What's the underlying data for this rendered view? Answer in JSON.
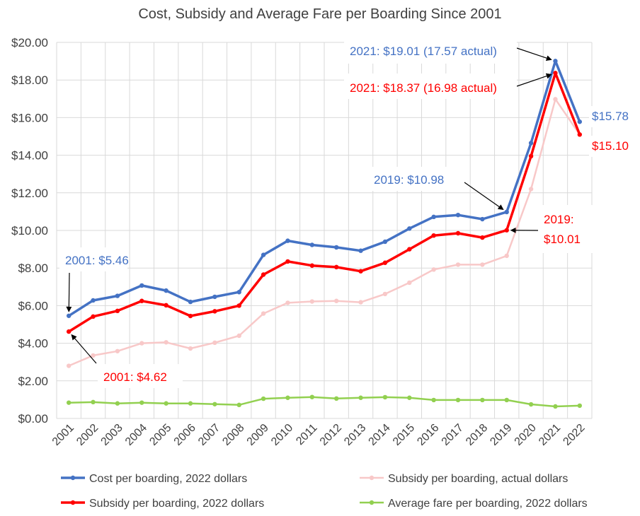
{
  "chart_data": {
    "type": "line",
    "title": "Cost, Subsidy and Average Fare per Boarding Since 2001",
    "xlabel": "",
    "ylabel": "",
    "ylim": [
      0,
      20
    ],
    "y_ticks": [
      "$0.00",
      "$2.00",
      "$4.00",
      "$6.00",
      "$8.00",
      "$10.00",
      "$12.00",
      "$14.00",
      "$16.00",
      "$18.00",
      "$20.00"
    ],
    "grid": true,
    "legend_position": "bottom",
    "categories": [
      "2001",
      "2002",
      "2003",
      "2004",
      "2005",
      "2006",
      "2007",
      "2008",
      "2009",
      "2010",
      "2011",
      "2012",
      "2013",
      "2014",
      "2015",
      "2016",
      "2017",
      "2018",
      "2019",
      "2020",
      "2021",
      "2022"
    ],
    "series": [
      {
        "name": "Cost per boarding, 2022 dollars",
        "color": "#4472C4",
        "width": 3.5,
        "values": [
          5.46,
          6.28,
          6.52,
          7.07,
          6.8,
          6.2,
          6.47,
          6.72,
          8.7,
          9.45,
          9.23,
          9.1,
          8.92,
          9.4,
          10.1,
          10.72,
          10.82,
          10.6,
          10.98,
          14.65,
          19.01,
          15.78
        ]
      },
      {
        "name": "Subsidy per boarding, 2022 dollars",
        "color": "#FF0000",
        "width": 3.5,
        "values": [
          4.62,
          5.42,
          5.72,
          6.25,
          6.02,
          5.45,
          5.7,
          6.0,
          7.65,
          8.35,
          8.13,
          8.05,
          7.83,
          8.28,
          9.0,
          9.73,
          9.85,
          9.62,
          10.01,
          13.95,
          18.37,
          15.1
        ]
      },
      {
        "name": "Subsidy per boarding, actual dollars",
        "color": "#F8C8C8",
        "width": 2.5,
        "values": [
          2.8,
          3.35,
          3.58,
          4.0,
          4.05,
          3.72,
          4.03,
          4.4,
          5.58,
          6.15,
          6.22,
          6.25,
          6.18,
          6.62,
          7.22,
          7.92,
          8.18,
          8.18,
          8.65,
          12.2,
          16.98,
          15.1
        ]
      },
      {
        "name": "Average fare per boarding, 2022 dollars",
        "color": "#92D050",
        "width": 2.5,
        "values": [
          0.84,
          0.87,
          0.8,
          0.84,
          0.8,
          0.8,
          0.76,
          0.72,
          1.05,
          1.1,
          1.14,
          1.06,
          1.1,
          1.13,
          1.1,
          0.98,
          0.98,
          0.98,
          0.98,
          0.75,
          0.64,
          0.68
        ]
      }
    ],
    "annotations": [
      {
        "text": "2021: $19.01 (17.57 actual)",
        "color": "#4472C4",
        "x": "2021",
        "y": 19.01
      },
      {
        "text": "2021: $18.37 (16.98 actual)",
        "color": "#FF0000",
        "x": "2021",
        "y": 18.37
      },
      {
        "text": "2019: $10.98",
        "color": "#4472C4",
        "x": "2019",
        "y": 10.98
      },
      {
        "text": "2019:",
        "text2": "$10.01",
        "color": "#FF0000",
        "x": "2019",
        "y": 10.01
      },
      {
        "text": "2001: $5.46",
        "color": "#4472C4",
        "x": "2001",
        "y": 5.46
      },
      {
        "text": "2001: $4.62",
        "color": "#FF0000",
        "x": "2001",
        "y": 4.62
      },
      {
        "text": "$15.78",
        "color": "#4472C4",
        "x": "2022",
        "y": 15.78
      },
      {
        "text": "$15.10",
        "color": "#FF0000",
        "x": "2022",
        "y": 15.1
      }
    ]
  }
}
